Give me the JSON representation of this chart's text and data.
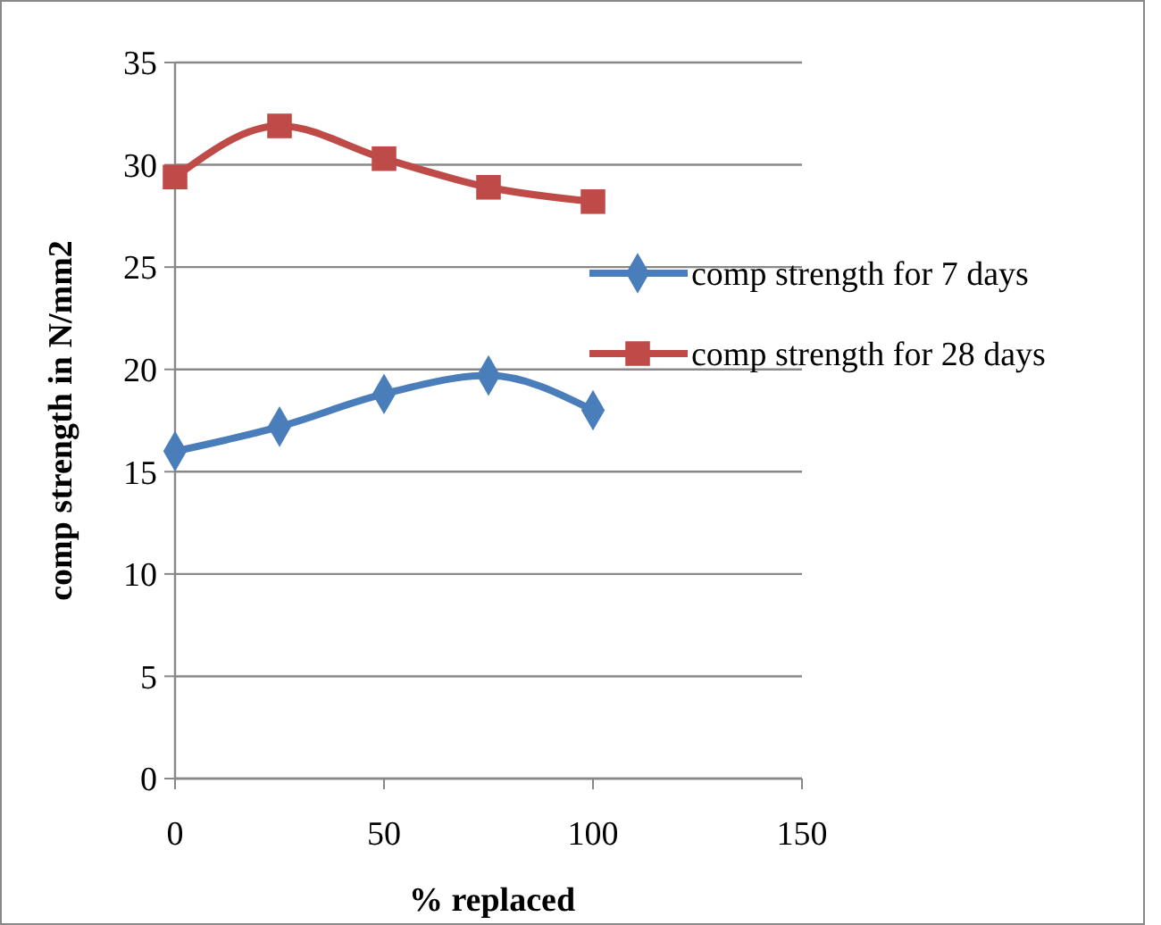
{
  "chart_data": {
    "type": "line",
    "xlabel": "% replaced",
    "ylabel": "comp strength in N/mm2",
    "x": [
      0,
      25,
      50,
      75,
      100
    ],
    "series": [
      {
        "name": "comp strength for 7 days",
        "color": "#4a7ebb",
        "values": [
          16.0,
          17.2,
          18.8,
          19.7,
          18.0
        ],
        "marker": "diamond"
      },
      {
        "name": "comp strength for 28 days",
        "color": "#be4b48",
        "values": [
          29.4,
          31.9,
          30.3,
          28.9,
          28.2
        ],
        "marker": "square"
      }
    ],
    "xlim": [
      0,
      150
    ],
    "xticks": [
      0,
      50,
      100,
      150
    ],
    "ylim": [
      0,
      35
    ],
    "yticks": [
      0,
      5,
      10,
      15,
      20,
      25,
      30,
      35
    ],
    "grid": "y",
    "legend": "right",
    "line_style": "solid"
  }
}
